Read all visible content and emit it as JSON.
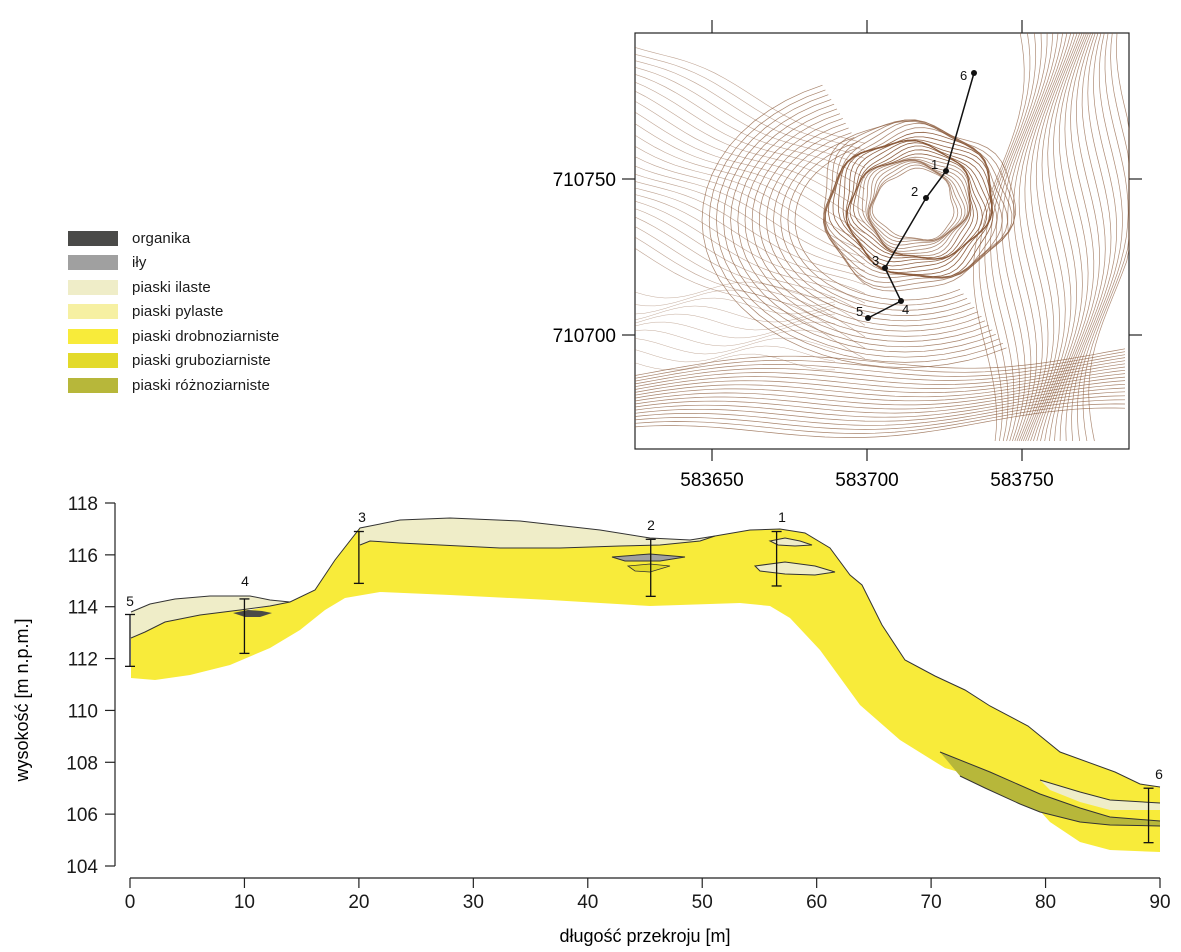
{
  "legend": {
    "items": [
      {
        "label": "organika",
        "color": "#4a4a48"
      },
      {
        "label": "iły",
        "color": "#a0a0a0"
      },
      {
        "label": "piaski ilaste",
        "color": "#efedc8"
      },
      {
        "label": "piaski pylaste",
        "color": "#f6f0a2"
      },
      {
        "label": "piaski drobnoziarniste",
        "color": "#f8eb3a"
      },
      {
        "label": "piaski gruboziarniste",
        "color": "#e3da2a"
      },
      {
        "label": "piaski różnoziarniste",
        "color": "#b7b73a"
      }
    ]
  },
  "map": {
    "x_ticks": [
      "583650",
      "583700",
      "583750"
    ],
    "y_ticks": [
      "710750",
      "710700"
    ],
    "points": [
      "1",
      "2",
      "3",
      "4",
      "5",
      "6"
    ],
    "contour_color": "#8a5a3a"
  },
  "profile": {
    "xlabel": "długość przekroju [m]",
    "ylabel": "wysokość [m n.p.m.]",
    "x_ticks": [
      "0",
      "10",
      "20",
      "30",
      "40",
      "50",
      "60",
      "70",
      "80",
      "90"
    ],
    "y_ticks": [
      "104",
      "106",
      "108",
      "110",
      "112",
      "114",
      "116",
      "118"
    ],
    "borehole_labels": [
      "5",
      "4",
      "3",
      "2",
      "1",
      "6"
    ]
  },
  "chart_data": {
    "type": "area",
    "xlabel": "długość przekroju [m]",
    "ylabel": "wysokość [m n.p.m.]",
    "xlim": [
      0,
      90
    ],
    "ylim": [
      104,
      118
    ],
    "boreholes": [
      {
        "name": "5",
        "x": 0,
        "top": 113.7,
        "bottom": 111.7
      },
      {
        "name": "4",
        "x": 10,
        "top": 114.3,
        "bottom": 112.2
      },
      {
        "name": "3",
        "x": 20,
        "top": 116.9,
        "bottom": 114.9
      },
      {
        "name": "2",
        "x": 45.5,
        "top": 116.6,
        "bottom": 114.4
      },
      {
        "name": "1",
        "x": 56.5,
        "top": 116.9,
        "bottom": 114.8
      },
      {
        "name": "6",
        "x": 89,
        "top": 107.0,
        "bottom": 104.9
      }
    ],
    "surface": [
      [
        0,
        113.7
      ],
      [
        4,
        114.2
      ],
      [
        9,
        114.4
      ],
      [
        12,
        114.3
      ],
      [
        14,
        114.1
      ],
      [
        18,
        115.9
      ],
      [
        20,
        116.9
      ],
      [
        23,
        117.3
      ],
      [
        26,
        117.4
      ],
      [
        31,
        117.4
      ],
      [
        37,
        117.2
      ],
      [
        42,
        116.8
      ],
      [
        46,
        116.55
      ],
      [
        50,
        116.6
      ],
      [
        52,
        116.8
      ],
      [
        57,
        117.0
      ],
      [
        59,
        116.7
      ],
      [
        62,
        115.3
      ],
      [
        67,
        111.7
      ],
      [
        71,
        110.9
      ],
      [
        74,
        110.3
      ],
      [
        79,
        108.3
      ],
      [
        84,
        107.6
      ],
      [
        89,
        107.0
      ]
    ]
  }
}
